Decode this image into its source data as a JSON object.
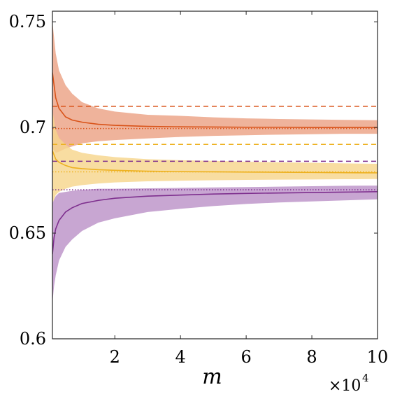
{
  "chart_data": {
    "type": "line",
    "title": "",
    "xlabel": "m",
    "ylabel": "",
    "x_multiplier": {
      "base": "×10",
      "exponent": "4"
    },
    "xlim": [
      0.1,
      10
    ],
    "ylim": [
      0.6,
      0.755
    ],
    "xticks": [
      2,
      4,
      6,
      8,
      10
    ],
    "xtick_labels": [
      "2",
      "4",
      "6",
      "8",
      "10"
    ],
    "yticks": [
      0.6,
      0.65,
      0.7,
      0.75
    ],
    "ytick_labels": [
      "0.6",
      "0.65",
      "0.7",
      "0.75"
    ],
    "grid": false,
    "series": [
      {
        "color": "#d95319",
        "band_color": "#eba285",
        "x": [
          0.1,
          0.2,
          0.3,
          0.5,
          0.7,
          1.0,
          1.5,
          2,
          3,
          4,
          5,
          6,
          7,
          8,
          9,
          10
        ],
        "mean": [
          0.726,
          0.714,
          0.709,
          0.705,
          0.7035,
          0.7025,
          0.7015,
          0.701,
          0.7005,
          0.7003,
          0.7002,
          0.7001,
          0.7001,
          0.7,
          0.7,
          0.7
        ],
        "upper": [
          0.75,
          0.735,
          0.727,
          0.72,
          0.716,
          0.712,
          0.709,
          0.7075,
          0.706,
          0.7055,
          0.7048,
          0.7043,
          0.704,
          0.7038,
          0.7036,
          0.7034
        ],
        "lower": [
          0.69,
          0.688,
          0.6885,
          0.69,
          0.691,
          0.6925,
          0.6935,
          0.694,
          0.6948,
          0.6955,
          0.696,
          0.6963,
          0.6966,
          0.6968,
          0.697,
          0.697
        ],
        "dashed": 0.71,
        "dotted": 0.6995
      },
      {
        "color": "#edb120",
        "band_color": "#f6d58c",
        "x": [
          0.1,
          0.2,
          0.3,
          0.5,
          0.7,
          1.0,
          1.5,
          2,
          3,
          4,
          5,
          6,
          7,
          8,
          9,
          10
        ],
        "mean": [
          0.689,
          0.685,
          0.6835,
          0.682,
          0.681,
          0.6805,
          0.68,
          0.6797,
          0.6793,
          0.6791,
          0.679,
          0.6789,
          0.6788,
          0.6787,
          0.6786,
          0.6785
        ],
        "upper": [
          0.708,
          0.699,
          0.695,
          0.692,
          0.6895,
          0.688,
          0.6868,
          0.686,
          0.685,
          0.6845,
          0.6842,
          0.6838,
          0.6835,
          0.6833,
          0.683,
          0.6828
        ],
        "lower": [
          0.664,
          0.668,
          0.6695,
          0.671,
          0.672,
          0.6727,
          0.6735,
          0.674,
          0.6745,
          0.6748,
          0.675,
          0.6752,
          0.6753,
          0.6754,
          0.6755,
          0.6756
        ],
        "dashed": 0.692,
        "dotted": 0.679
      },
      {
        "color": "#7e2f8e",
        "band_color": "#bc92c8",
        "x": [
          0.1,
          0.15,
          0.2,
          0.3,
          0.5,
          0.7,
          1.0,
          1.5,
          2,
          3,
          4,
          5,
          6,
          7,
          8,
          9,
          10
        ],
        "mean": [
          0.64,
          0.648,
          0.652,
          0.656,
          0.66,
          0.662,
          0.664,
          0.6655,
          0.6665,
          0.6675,
          0.668,
          0.6685,
          0.6688,
          0.669,
          0.6692,
          0.6694,
          0.6696
        ],
        "upper": [
          0.664,
          0.666,
          0.6675,
          0.669,
          0.6695,
          0.67,
          0.6705,
          0.671,
          0.671,
          0.6712,
          0.6714,
          0.6716,
          0.6718,
          0.672,
          0.6722,
          0.6724,
          0.6725
        ],
        "lower": [
          0.617,
          0.625,
          0.63,
          0.637,
          0.6435,
          0.647,
          0.651,
          0.655,
          0.657,
          0.66,
          0.6615,
          0.6628,
          0.6638,
          0.6645,
          0.665,
          0.6655,
          0.666
        ],
        "dashed": 0.684,
        "dotted": 0.6705
      }
    ]
  }
}
